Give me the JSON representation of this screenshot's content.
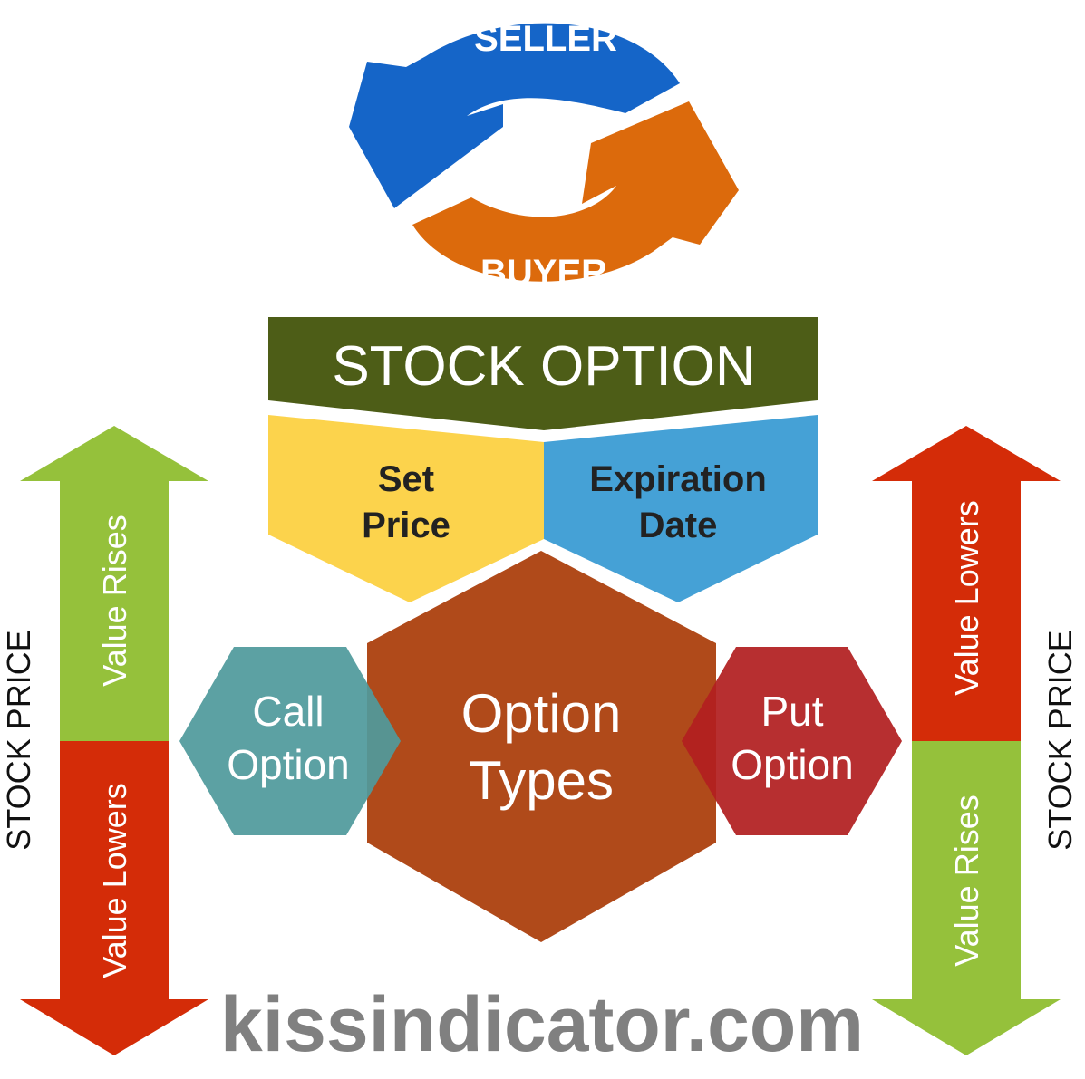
{
  "cycle": {
    "top_label": "SELLER",
    "bottom_label": "BUYER"
  },
  "banner": {
    "title": "STOCK OPTION"
  },
  "terms": {
    "left_line1": "Set",
    "left_line2": "Price",
    "right_line1": "Expiration",
    "right_line2": "Date"
  },
  "types": {
    "center_line1": "Option",
    "center_line2": "Types",
    "left_line1": "Call",
    "left_line2": "Option",
    "right_line1": "Put",
    "right_line2": "Option"
  },
  "left_side": {
    "axis_label": "STOCK PRICE",
    "upper_label": "Value Rises",
    "lower_label": "Value Lowers"
  },
  "right_side": {
    "axis_label": "STOCK PRICE",
    "upper_label": "Value Lowers",
    "lower_label": "Value Rises"
  },
  "footer": {
    "site": "kissindicator.com"
  },
  "colors": {
    "blue": "#1565c8",
    "orange": "#dc6a0c",
    "banner_green": "#4d5d17",
    "yellow": "#fcd34c",
    "sky_blue": "#45a1d6",
    "rust": "#b04a1a",
    "teal": "#509a9c",
    "crimson": "#b11f20",
    "bar_green": "#95c13b",
    "bar_red": "#d42c08",
    "gray_text": "#808080"
  }
}
